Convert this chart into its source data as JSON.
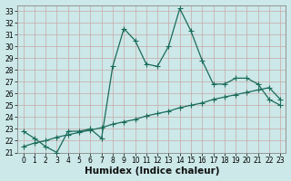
{
  "xlabel": "Humidex (Indice chaleur)",
  "ylabel": "",
  "background_color": "#cce8e8",
  "grid_major_color": "#b8d8d0",
  "grid_minor_color": "#d8b8b8",
  "line_color": "#1a6b5a",
  "xlim": [
    -0.5,
    23.5
  ],
  "ylim": [
    21,
    33.5
  ],
  "yticks": [
    21,
    22,
    23,
    24,
    25,
    26,
    27,
    28,
    29,
    30,
    31,
    32,
    33
  ],
  "xticks": [
    0,
    1,
    2,
    3,
    4,
    5,
    6,
    7,
    8,
    9,
    10,
    11,
    12,
    13,
    14,
    15,
    16,
    17,
    18,
    19,
    20,
    21,
    22,
    23
  ],
  "line1_x": [
    0,
    1,
    2,
    3,
    4,
    5,
    6,
    7,
    8,
    9,
    10,
    11,
    12,
    13,
    14,
    15,
    16,
    17,
    18,
    19,
    20,
    21,
    22,
    23
  ],
  "line1_y": [
    22.8,
    22.2,
    21.5,
    21.0,
    22.8,
    22.8,
    23.0,
    22.2,
    28.3,
    31.5,
    30.5,
    28.5,
    28.3,
    30.0,
    33.2,
    31.3,
    28.8,
    26.8,
    26.8,
    27.3,
    27.3,
    26.8,
    25.5,
    25.0
  ],
  "line2_x": [
    0,
    1,
    2,
    3,
    4,
    5,
    6,
    7,
    8,
    9,
    10,
    11,
    12,
    13,
    14,
    15,
    16,
    17,
    18,
    19,
    20,
    21,
    22,
    23
  ],
  "line2_y": [
    21.5,
    21.8,
    22.0,
    22.3,
    22.5,
    22.7,
    22.9,
    23.1,
    23.4,
    23.6,
    23.8,
    24.1,
    24.3,
    24.5,
    24.8,
    25.0,
    25.2,
    25.5,
    25.7,
    25.9,
    26.1,
    26.3,
    26.5,
    25.5
  ],
  "marker": "+",
  "markersize": 4,
  "linewidth": 0.9,
  "tick_fontsize": 5.5,
  "label_fontsize": 7.5
}
